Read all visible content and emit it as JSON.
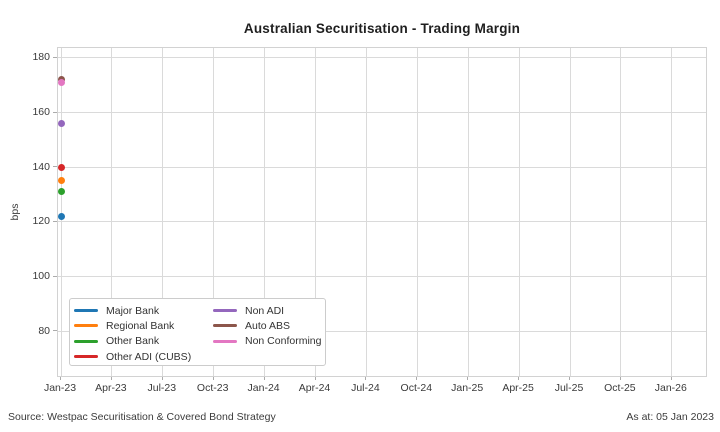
{
  "chart_data": {
    "type": "scatter",
    "title": "Australian Securitisation - Trading Margin",
    "xlabel": "",
    "ylabel": "bps",
    "x_tick_labels": [
      "Jan-23",
      "Apr-23",
      "Jul-23",
      "Oct-23",
      "Jan-24",
      "Apr-24",
      "Jul-24",
      "Oct-24",
      "Jan-25",
      "Apr-25",
      "Jul-25",
      "Oct-25",
      "Jan-26"
    ],
    "y_ticks": [
      80,
      100,
      120,
      140,
      160,
      180
    ],
    "ylim": [
      63.6,
      183.6
    ],
    "grid": true,
    "legend_position": "lower left",
    "legend_columns": [
      4,
      3
    ],
    "series": [
      {
        "name": "Major Bank",
        "color": "#1f77b4",
        "x": "Jan-23",
        "value": 122
      },
      {
        "name": "Regional Bank",
        "color": "#ff7f0e",
        "x": "Jan-23",
        "value": 135
      },
      {
        "name": "Other Bank",
        "color": "#2ca02c",
        "x": "Jan-23",
        "value": 131
      },
      {
        "name": "Other ADI (CUBS)",
        "color": "#d62728",
        "x": "Jan-23",
        "value": 140
      },
      {
        "name": "Non ADI",
        "color": "#9467bd",
        "x": "Jan-23",
        "value": 156
      },
      {
        "name": "Auto ABS",
        "color": "#8c564b",
        "x": "Jan-23",
        "value": 172
      },
      {
        "name": "Non Conforming",
        "color": "#e377c2",
        "x": "Jan-23",
        "value": 171
      }
    ]
  },
  "footer": {
    "source": "Source: Westpac Securitisation & Covered Bond Strategy",
    "as_at": "As at: 05 Jan 2023"
  }
}
